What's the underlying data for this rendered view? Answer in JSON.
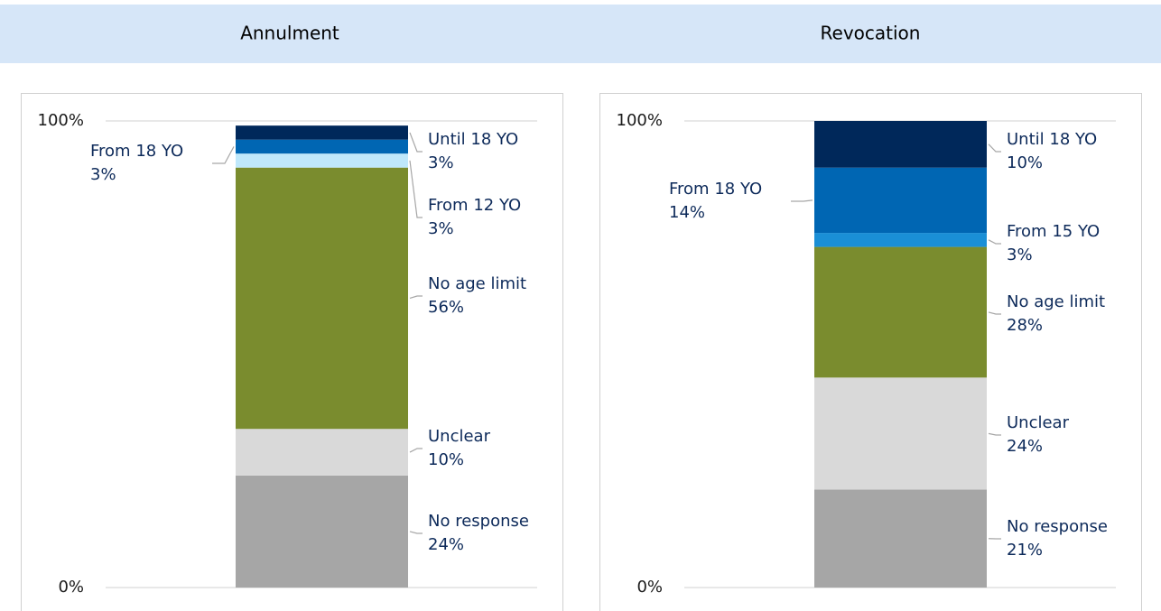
{
  "chart_data": [
    {
      "type": "bar",
      "stacked": true,
      "title": "Annulment",
      "ylim": [
        0,
        100
      ],
      "yticks": [
        {
          "value": 0,
          "label": "0%"
        },
        {
          "value": 100,
          "label": "100%"
        }
      ],
      "grid": true,
      "series": [
        {
          "name": "No response",
          "color": "#a6a6a6",
          "values": [
            24
          ],
          "value_labels": [
            "24%"
          ]
        },
        {
          "name": "Unclear",
          "color": "#d9d9d9",
          "values": [
            10
          ],
          "value_labels": [
            "10%"
          ]
        },
        {
          "name": "No age limit",
          "color": "#7a8c2e",
          "values": [
            56
          ],
          "value_labels": [
            "56%"
          ]
        },
        {
          "name": "From 12 YO",
          "color": "#bfe8fb",
          "values": [
            3
          ],
          "value_labels": [
            "3%"
          ]
        },
        {
          "name": "From 18 YO",
          "color": "#0066b3",
          "values": [
            3
          ],
          "value_labels": [
            "3%"
          ]
        },
        {
          "name": "Until 18 YO",
          "color": "#00285a",
          "values": [
            3
          ],
          "value_labels": [
            "3%"
          ]
        }
      ]
    },
    {
      "type": "bar",
      "stacked": true,
      "title": "Revocation",
      "ylim": [
        0,
        100
      ],
      "yticks": [
        {
          "value": 0,
          "label": "0%"
        },
        {
          "value": 100,
          "label": "100%"
        }
      ],
      "grid": true,
      "series": [
        {
          "name": "No response",
          "color": "#a6a6a6",
          "values": [
            21
          ],
          "value_labels": [
            "21%"
          ]
        },
        {
          "name": "Unclear",
          "color": "#d9d9d9",
          "values": [
            24
          ],
          "value_labels": [
            "24%"
          ]
        },
        {
          "name": "No age limit",
          "color": "#7a8c2e",
          "values": [
            28
          ],
          "value_labels": [
            "28%"
          ]
        },
        {
          "name": "From 15 YO",
          "color": "#1a8fd6",
          "values": [
            3
          ],
          "value_labels": [
            "3%"
          ]
        },
        {
          "name": "From 18 YO",
          "color": "#0066b3",
          "values": [
            14
          ],
          "value_labels": [
            "14%"
          ]
        },
        {
          "name": "Until 18 YO",
          "color": "#00285a",
          "values": [
            10
          ],
          "value_labels": [
            "10%"
          ]
        }
      ]
    }
  ]
}
